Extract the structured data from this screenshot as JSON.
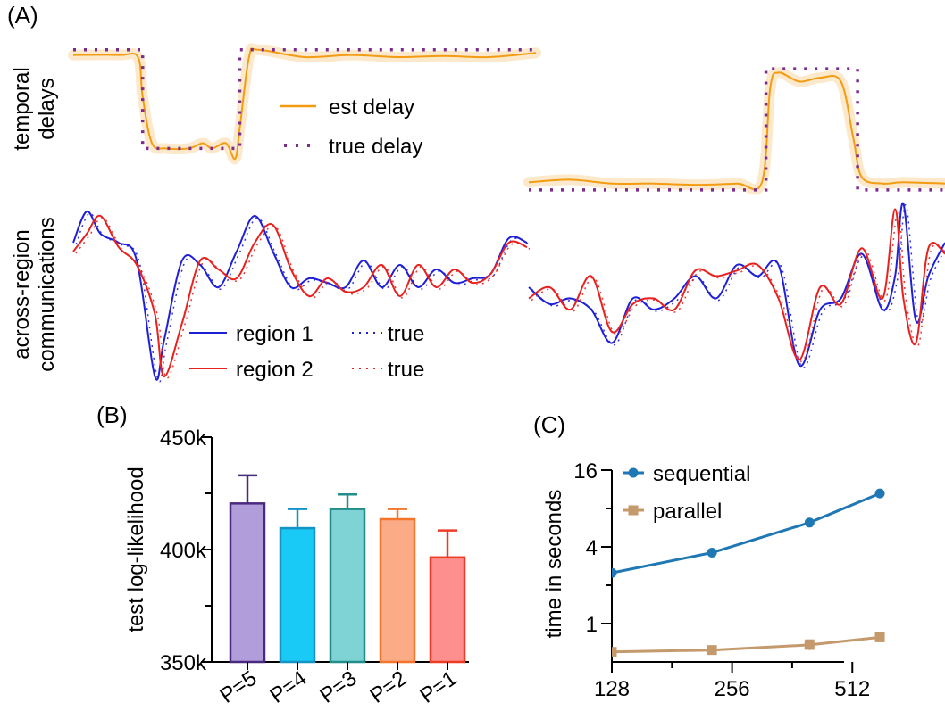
{
  "panels": {
    "a": {
      "label": "(A)"
    },
    "b": {
      "label": "(B)"
    },
    "c": {
      "label": "(C)"
    }
  },
  "panel_a": {
    "row1_label_line1": "temporal",
    "row1_label_line2": "delays",
    "row2_label_line1": "across-region",
    "row2_label_line2": "communications",
    "legend_delay": [
      {
        "label": "est delay",
        "color": "#f39c12",
        "style": "solid"
      },
      {
        "label": "true delay",
        "color": "#7b2d8e",
        "style": "dotted"
      }
    ],
    "legend_comm": [
      {
        "label": "region 1",
        "color": "#1f1fd6",
        "style": "solid"
      },
      {
        "label": "true",
        "color": "#1f1fd6",
        "style": "dotted"
      },
      {
        "label": "region 2",
        "color": "#e8211f",
        "style": "solid"
      },
      {
        "label": "true",
        "color": "#e8211f",
        "style": "dotted"
      }
    ]
  },
  "chart_data": [
    {
      "panel": "A-top-left",
      "type": "line",
      "series": [
        {
          "name": "est delay",
          "color": "#f39c12",
          "x": [
            0,
            0.1,
            0.14,
            0.15,
            0.17,
            0.2,
            0.25,
            0.28,
            0.3,
            0.33,
            0.35,
            0.36,
            0.38,
            0.4,
            0.5,
            0.6,
            0.7,
            0.8,
            0.9,
            1.0
          ],
          "y": [
            0.9,
            0.9,
            0.88,
            0.5,
            0.05,
            0.0,
            0.0,
            0.05,
            0.0,
            0.05,
            -0.1,
            0.2,
            0.88,
            0.95,
            0.88,
            0.9,
            0.88,
            0.89,
            0.88,
            0.92
          ]
        },
        {
          "name": "true delay",
          "color": "#7b2d8e",
          "x": [
            0,
            0.15,
            0.15,
            0.36,
            0.36,
            1.0
          ],
          "y": [
            0.95,
            0.95,
            0.0,
            0.0,
            0.95,
            0.95
          ]
        }
      ]
    },
    {
      "panel": "A-top-right",
      "type": "line",
      "series": [
        {
          "name": "est delay",
          "color": "#f39c12",
          "x": [
            0,
            0.1,
            0.2,
            0.3,
            0.4,
            0.5,
            0.56,
            0.58,
            0.6,
            0.65,
            0.7,
            0.75,
            0.78,
            0.8,
            0.85,
            0.9,
            1.0
          ],
          "y": [
            0.06,
            0.08,
            0.05,
            0.05,
            0.04,
            0.05,
            0.06,
            0.8,
            0.92,
            0.85,
            0.88,
            0.85,
            0.4,
            0.1,
            0.05,
            0.06,
            0.05
          ]
        },
        {
          "name": "true delay",
          "color": "#7b2d8e",
          "x": [
            0,
            0.57,
            0.57,
            0.79,
            0.79,
            1.0
          ],
          "y": [
            0.0,
            0.0,
            0.95,
            0.95,
            0.0,
            0.0
          ]
        }
      ]
    },
    {
      "panel": "A-bottom-left",
      "type": "line",
      "series": [
        {
          "name": "region 1",
          "color": "#1f1fd6",
          "x": [
            0,
            0.03,
            0.06,
            0.1,
            0.14,
            0.18,
            0.2,
            0.24,
            0.28,
            0.32,
            0.36,
            0.4,
            0.44,
            0.48,
            0.52,
            0.56,
            0.6,
            0.64,
            0.68,
            0.72,
            0.76,
            0.8,
            0.84,
            0.88,
            0.92,
            0.96,
            1.0
          ],
          "y": [
            0.6,
            0.95,
            0.7,
            0.6,
            0.4,
            -0.9,
            -0.5,
            0.4,
            0.35,
            0.1,
            0.5,
            0.9,
            0.5,
            0.1,
            0.2,
            0.15,
            0.1,
            0.4,
            0.1,
            0.35,
            0.1,
            0.3,
            0.15,
            0.2,
            0.25,
            0.65,
            0.6
          ]
        },
        {
          "name": "region 2",
          "color": "#e8211f",
          "x": [
            0,
            0.03,
            0.06,
            0.1,
            0.14,
            0.18,
            0.2,
            0.24,
            0.28,
            0.32,
            0.36,
            0.4,
            0.44,
            0.48,
            0.52,
            0.56,
            0.6,
            0.64,
            0.68,
            0.72,
            0.76,
            0.8,
            0.84,
            0.88,
            0.92,
            0.96,
            1.0
          ],
          "y": [
            0.5,
            0.7,
            0.9,
            0.55,
            0.35,
            -0.2,
            -0.9,
            -0.3,
            0.4,
            0.3,
            0.2,
            0.6,
            0.8,
            0.3,
            0.0,
            0.2,
            0.05,
            0.1,
            0.35,
            0.0,
            0.35,
            0.1,
            0.3,
            0.15,
            0.25,
            0.6,
            0.55
          ]
        }
      ]
    },
    {
      "panel": "A-bottom-right",
      "type": "line",
      "series": [
        {
          "name": "region 1",
          "color": "#1f1fd6",
          "x": [
            0,
            0.05,
            0.1,
            0.15,
            0.2,
            0.25,
            0.3,
            0.35,
            0.4,
            0.45,
            0.5,
            0.55,
            0.6,
            0.65,
            0.7,
            0.75,
            0.8,
            0.85,
            0.88,
            0.9,
            0.93,
            0.96,
            1.0
          ],
          "y": [
            0.2,
            0.05,
            0.1,
            0.0,
            -0.3,
            0.1,
            0.0,
            0.1,
            0.3,
            0.1,
            0.4,
            0.3,
            0.4,
            -0.5,
            0.0,
            0.1,
            0.5,
            0.0,
            0.3,
            0.95,
            -0.1,
            0.3,
            0.6
          ]
        },
        {
          "name": "region 2",
          "color": "#e8211f",
          "x": [
            0,
            0.05,
            0.1,
            0.15,
            0.2,
            0.25,
            0.3,
            0.35,
            0.4,
            0.45,
            0.5,
            0.55,
            0.6,
            0.65,
            0.7,
            0.75,
            0.8,
            0.85,
            0.88,
            0.9,
            0.93,
            0.96,
            1.0
          ],
          "y": [
            0.1,
            0.2,
            0.0,
            0.3,
            -0.2,
            0.05,
            0.1,
            0.0,
            0.35,
            0.3,
            0.35,
            0.4,
            0.1,
            -0.45,
            0.2,
            0.05,
            0.55,
            0.1,
            0.9,
            0.1,
            -0.3,
            0.55,
            0.5
          ]
        }
      ]
    },
    {
      "panel": "B",
      "type": "bar",
      "ylabel": "test log-likelihood",
      "categories": [
        "P=5",
        "P=4",
        "P=3",
        "P=2",
        "P=1"
      ],
      "values": [
        420500,
        409500,
        418000,
        413500,
        396500
      ],
      "errors": [
        12500,
        8500,
        6500,
        4500,
        12000
      ],
      "colors": [
        "#b29ddb",
        "#19c9f6",
        "#7fd3d4",
        "#fbab86",
        "#fd908e"
      ],
      "edge_colors": [
        "#4a2a7e",
        "#1593c4",
        "#218e8c",
        "#f2772d",
        "#ee3b24"
      ],
      "ylim": [
        350000,
        450000
      ],
      "yticks": [
        350000,
        400000,
        450000
      ],
      "ytick_labels": [
        "350k",
        "400k",
        "450k"
      ]
    },
    {
      "panel": "C",
      "type": "line",
      "ylabel": "time in seconds",
      "x_scale": "log2",
      "y_scale": "log2",
      "xticks": [
        128,
        256,
        512
      ],
      "xtick_labels": [
        "128",
        "256",
        "512"
      ],
      "yticks": [
        1,
        4,
        16
      ],
      "ytick_labels": [
        "1",
        "4",
        "16"
      ],
      "xlim": [
        128,
        700
      ],
      "ylim": [
        0.5,
        16
      ],
      "series": [
        {
          "name": "sequential",
          "color": "#1f77b4",
          "marker": "circle",
          "x": [
            128,
            228,
            400,
            600
          ],
          "y": [
            2.5,
            3.6,
            6.2,
            10.5
          ],
          "errors": [
            0,
            0,
            0,
            0
          ]
        },
        {
          "name": "parallel",
          "color": "#c49a6c",
          "marker": "square",
          "x": [
            128,
            228,
            400,
            600
          ],
          "y": [
            0.6,
            0.62,
            0.68,
            0.78
          ],
          "errors": [
            0,
            0,
            0.06,
            0
          ]
        }
      ]
    }
  ]
}
